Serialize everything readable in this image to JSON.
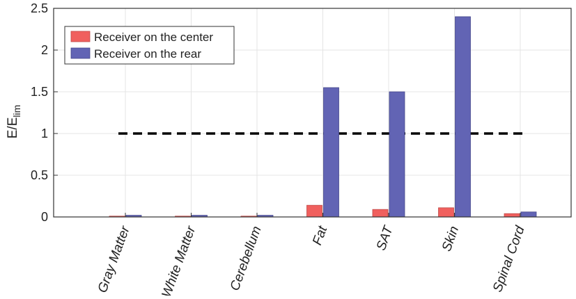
{
  "chart_data": {
    "type": "bar",
    "categories": [
      "Gray Matter",
      "White Matter",
      "Cerebellum",
      "Fat",
      "SAT",
      "Skin",
      "Spinal Cord"
    ],
    "series": [
      {
        "name": "Receiver on the center",
        "color": "#f0605e",
        "values": [
          0.01,
          0.01,
          0.01,
          0.14,
          0.09,
          0.11,
          0.04
        ]
      },
      {
        "name": "Receiver on the rear",
        "color": "#6264b4",
        "values": [
          0.02,
          0.02,
          0.02,
          1.55,
          1.5,
          2.4,
          0.06
        ]
      }
    ],
    "ylabel": "E/E",
    "ylabel_subscript": "lim",
    "ylim": [
      0,
      2.5
    ],
    "yticks": [
      "0",
      "0.5",
      "1",
      "1.5",
      "2",
      "2.5"
    ],
    "threshold": {
      "value": 1,
      "style": "dashed",
      "color": "#000000"
    },
    "grid": true,
    "legend_position": "top-left"
  }
}
